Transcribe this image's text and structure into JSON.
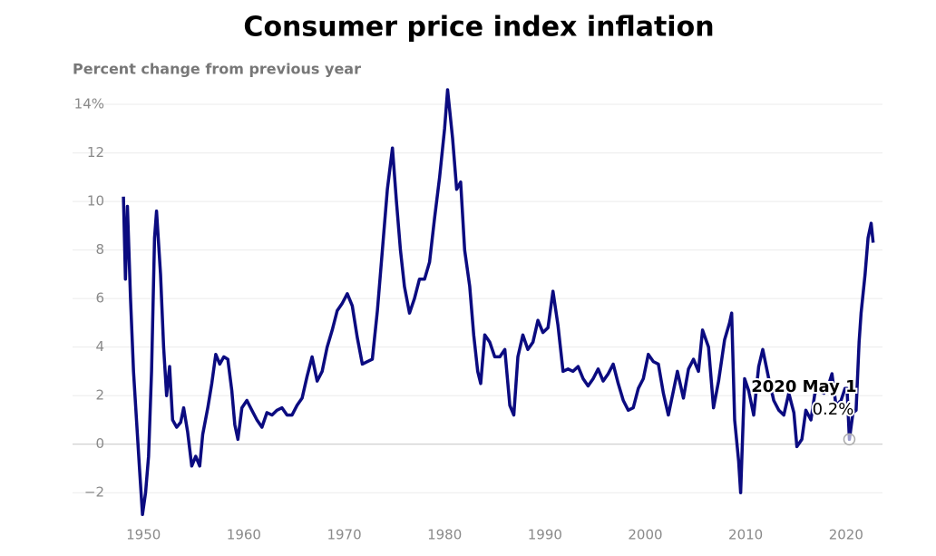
{
  "chart_data": {
    "type": "line",
    "title": "Consumer price index inflation",
    "y_label": "Percent change from previous year",
    "color": "#0b0b80",
    "grid": true,
    "xlim": [
      1947.9,
      2023.0
    ],
    "ylim": [
      -3,
      14.6
    ],
    "xticks": [
      1950,
      1960,
      1970,
      1980,
      1990,
      2000,
      2010,
      2020
    ],
    "yticks": [
      {
        "value": -2,
        "label": "−2"
      },
      0,
      2,
      4,
      6,
      8,
      10,
      12,
      {
        "value": 14,
        "label": "14%"
      }
    ],
    "x": [
      1948.0,
      1948.2,
      1948.4,
      1948.7,
      1949.0,
      1949.3,
      1949.6,
      1949.9,
      1950.2,
      1950.5,
      1950.8,
      1951.1,
      1951.3,
      1951.7,
      1952.0,
      1952.3,
      1952.6,
      1952.9,
      1953.3,
      1953.7,
      1954.0,
      1954.4,
      1954.8,
      1955.2,
      1955.6,
      1955.9,
      1956.4,
      1956.8,
      1957.2,
      1957.6,
      1958.0,
      1958.4,
      1958.8,
      1959.1,
      1959.4,
      1959.8,
      1960.3,
      1960.8,
      1961.3,
      1961.8,
      1962.3,
      1962.8,
      1963.3,
      1963.8,
      1964.3,
      1964.8,
      1965.3,
      1965.8,
      1966.3,
      1966.8,
      1967.3,
      1967.8,
      1968.3,
      1968.8,
      1969.3,
      1969.8,
      1970.3,
      1970.8,
      1971.3,
      1971.8,
      1972.3,
      1972.8,
      1973.3,
      1973.8,
      1974.3,
      1974.8,
      1975.2,
      1975.6,
      1976.0,
      1976.5,
      1977.0,
      1977.5,
      1978.0,
      1978.5,
      1979.0,
      1979.5,
      1980.0,
      1980.3,
      1980.8,
      1981.2,
      1981.6,
      1982.0,
      1982.5,
      1982.9,
      1983.3,
      1983.6,
      1984.0,
      1984.5,
      1985.0,
      1985.5,
      1986.0,
      1986.5,
      1986.9,
      1987.3,
      1987.8,
      1988.3,
      1988.8,
      1989.3,
      1989.8,
      1990.3,
      1990.8,
      1991.3,
      1991.8,
      1992.3,
      1992.8,
      1993.3,
      1993.8,
      1994.3,
      1994.8,
      1995.3,
      1995.8,
      1996.3,
      1996.8,
      1997.3,
      1997.8,
      1998.3,
      1998.8,
      1999.3,
      1999.8,
      2000.3,
      2000.8,
      2001.3,
      2001.8,
      2002.3,
      2002.8,
      2003.2,
      2003.8,
      2004.3,
      2004.8,
      2005.3,
      2005.7,
      2006.3,
      2006.8,
      2007.3,
      2007.9,
      2008.4,
      2008.6,
      2008.9,
      2009.3,
      2009.5,
      2009.9,
      2010.3,
      2010.8,
      2011.3,
      2011.7,
      2012.3,
      2012.8,
      2013.3,
      2013.8,
      2014.3,
      2014.8,
      2015.1,
      2015.6,
      2016.0,
      2016.5,
      2016.9,
      2017.3,
      2017.8,
      2018.3,
      2018.6,
      2019.0,
      2019.5,
      2019.9,
      2020.1,
      2020.33,
      2020.7,
      2021.0,
      2021.3,
      2021.5,
      2021.9,
      2022.2,
      2022.5,
      2022.7
    ],
    "values": [
      10.2,
      6.8,
      9.8,
      6.0,
      3.0,
      1.0,
      -1.0,
      -2.9,
      -2.0,
      -0.5,
      3.0,
      8.5,
      9.6,
      7.0,
      4.0,
      2.0,
      3.2,
      1.0,
      0.7,
      0.9,
      1.5,
      0.5,
      -0.9,
      -0.5,
      -0.9,
      0.4,
      1.5,
      2.5,
      3.7,
      3.3,
      3.6,
      3.5,
      2.2,
      0.8,
      0.2,
      1.5,
      1.8,
      1.4,
      1.0,
      0.7,
      1.3,
      1.2,
      1.4,
      1.5,
      1.2,
      1.2,
      1.6,
      1.9,
      2.8,
      3.6,
      2.6,
      3.0,
      4.0,
      4.7,
      5.5,
      5.8,
      6.2,
      5.7,
      4.4,
      3.3,
      3.4,
      3.5,
      5.5,
      8.0,
      10.5,
      12.2,
      10.0,
      8.0,
      6.5,
      5.4,
      6.0,
      6.8,
      6.8,
      7.5,
      9.3,
      11.0,
      13.0,
      14.6,
      12.6,
      10.5,
      10.8,
      8.0,
      6.5,
      4.5,
      3.0,
      2.5,
      4.5,
      4.2,
      3.6,
      3.6,
      3.9,
      1.6,
      1.2,
      3.6,
      4.5,
      3.9,
      4.2,
      5.1,
      4.6,
      4.8,
      6.3,
      4.9,
      3.0,
      3.1,
      3.0,
      3.2,
      2.7,
      2.4,
      2.7,
      3.1,
      2.6,
      2.9,
      3.3,
      2.5,
      1.8,
      1.4,
      1.5,
      2.3,
      2.7,
      3.7,
      3.4,
      3.3,
      2.1,
      1.2,
      2.2,
      3.0,
      1.9,
      3.1,
      3.5,
      3.0,
      4.7,
      4.0,
      1.5,
      2.6,
      4.3,
      5.0,
      5.4,
      1.0,
      -0.7,
      -2.0,
      2.7,
      2.2,
      1.2,
      3.2,
      3.9,
      2.7,
      1.8,
      1.4,
      1.2,
      2.1,
      1.3,
      -0.1,
      0.2,
      1.4,
      1.0,
      2.1,
      2.2,
      2.1,
      2.5,
      2.9,
      1.6,
      1.8,
      2.3,
      2.3,
      0.2,
      1.3,
      1.4,
      4.2,
      5.4,
      7.0,
      8.5,
      9.1,
      8.3
    ],
    "annotation": {
      "label": "2020 May 1",
      "value_label": "0.2%",
      "x": 2020.33,
      "y": 0.2
    }
  }
}
